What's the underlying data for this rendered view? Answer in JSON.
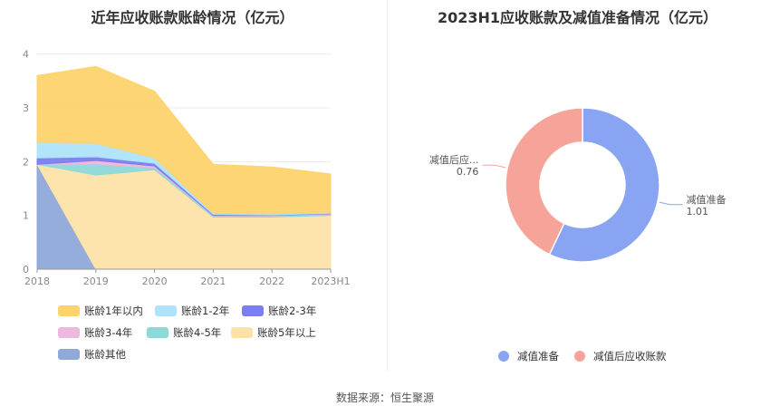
{
  "source_text": "数据来源：恒生聚源",
  "chart_data": [
    {
      "type": "area",
      "stacked": true,
      "title": "近年应收账款账龄情况（亿元）",
      "x": [
        "2018",
        "2019",
        "2020",
        "2021",
        "2022",
        "2023H1"
      ],
      "yticks": [
        "0",
        "1",
        "2",
        "3",
        "4"
      ],
      "ylim": [
        0,
        4.5
      ],
      "legend_position": "bottom",
      "series": [
        {
          "name": "账龄其他",
          "color": "#8fa9d9",
          "values": [
            1.95,
            0,
            0,
            0,
            0,
            0
          ]
        },
        {
          "name": "账龄5年以上",
          "color": "#fde1a8",
          "values": [
            0,
            1.75,
            1.85,
            0.97,
            0.97,
            1.0
          ]
        },
        {
          "name": "账龄4-5年",
          "color": "#8fd8d8",
          "values": [
            0,
            0.2,
            0.04,
            0.02,
            0.02,
            0.02
          ]
        },
        {
          "name": "账龄3-4年",
          "color": "#edb8de",
          "values": [
            0,
            0.07,
            0.03,
            0.01,
            0.01,
            0.01
          ]
        },
        {
          "name": "账龄2-3年",
          "color": "#7b7ef0",
          "values": [
            0.12,
            0.07,
            0.05,
            0.02,
            0.01,
            0.01
          ]
        },
        {
          "name": "账龄1-2年",
          "color": "#aee3fb",
          "values": [
            0.28,
            0.25,
            0.1,
            0.02,
            0.02,
            0.02
          ]
        },
        {
          "name": "账龄1年以内",
          "color": "#fdd36e",
          "values": [
            1.25,
            1.43,
            1.24,
            0.91,
            0.87,
            0.71
          ]
        }
      ],
      "legend_order": [
        "账龄1年以内",
        "账龄1-2年",
        "账龄2-3年",
        "账龄3-4年",
        "账龄4-5年",
        "账龄5年以上",
        "账龄其他"
      ]
    },
    {
      "type": "pie",
      "donut": true,
      "title": "2023H1应收账款及减值准备情况（亿元）",
      "legend_position": "bottom",
      "slices": [
        {
          "name": "减值准备",
          "label": "减值准备",
          "value": 1.01,
          "value_text": "1.01",
          "color": "#8aa4f4"
        },
        {
          "name": "减值后应收账款",
          "label": "减值后应...",
          "value": 0.76,
          "value_text": "0.76",
          "color": "#f6a39a"
        }
      ]
    }
  ]
}
